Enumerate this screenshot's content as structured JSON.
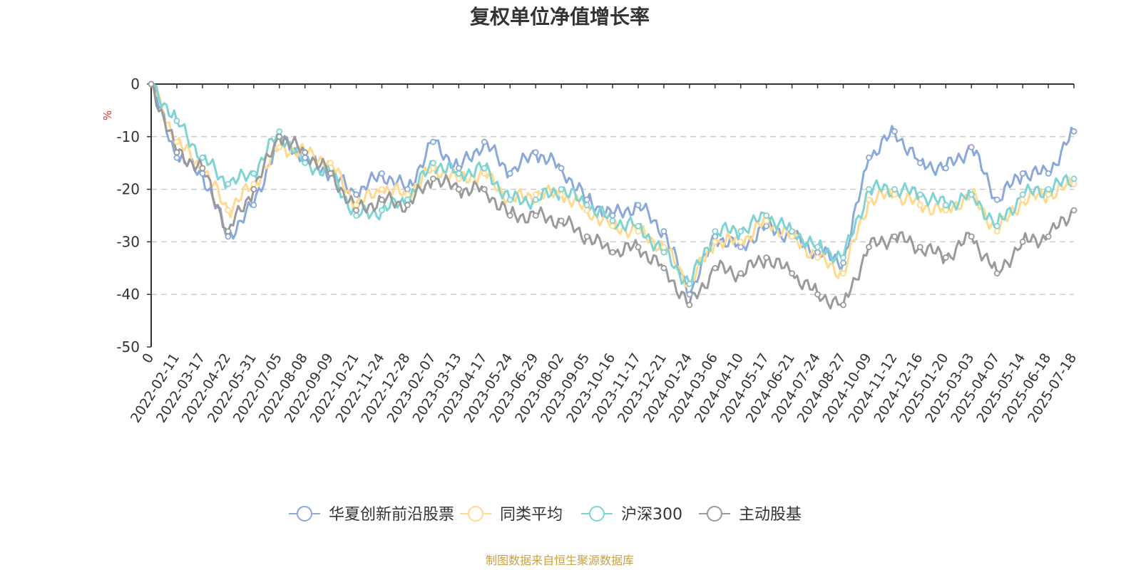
{
  "chart_data": {
    "type": "line",
    "title": "复权单位净值增长率",
    "ylabel": "%",
    "ylim": [
      -50,
      0
    ],
    "yticks": [
      0,
      -10,
      -20,
      -30,
      -40,
      -50
    ],
    "grid": "horizontal-dashed",
    "legend_position": "bottom",
    "source": "制图数据来自恒生聚源数据库",
    "x_tick_labels": [
      "0",
      "2022-02-11",
      "2022-03-17",
      "2022-04-22",
      "2022-05-31",
      "2022-07-05",
      "2022-08-08",
      "2022-09-09",
      "2022-10-21",
      "2022-11-24",
      "2022-12-28",
      "2023-02-07",
      "2023-03-13",
      "2023-04-17",
      "2023-05-24",
      "2023-06-29",
      "2023-08-02",
      "2023-09-05",
      "2023-10-16",
      "2023-11-17",
      "2023-12-21",
      "2024-01-24",
      "2024-03-06",
      "2024-04-10",
      "2024-05-17",
      "2024-06-21",
      "2024-07-24",
      "2024-08-27",
      "2024-10-09",
      "2024-11-12",
      "2024-12-16",
      "2025-01-20",
      "2025-03-03",
      "2025-04-07",
      "2025-05-14",
      "2025-06-18",
      "2025-07-18"
    ],
    "x": [
      "0",
      "2022-02-11",
      "2022-03-17",
      "2022-04-22",
      "2022-05-31",
      "2022-07-05",
      "2022-08-08",
      "2022-09-09",
      "2022-10-21",
      "2022-11-24",
      "2022-12-28",
      "2023-02-07",
      "2023-03-13",
      "2023-04-17",
      "2023-05-24",
      "2023-06-29",
      "2023-08-02",
      "2023-09-05",
      "2023-10-16",
      "2023-11-17",
      "2023-12-21",
      "2024-01-24",
      "2024-03-06",
      "2024-04-10",
      "2024-05-17",
      "2024-06-21",
      "2024-07-24",
      "2024-08-27",
      "2024-10-09",
      "2024-11-12",
      "2024-12-16",
      "2025-01-20",
      "2025-03-03",
      "2025-04-07",
      "2025-05-14",
      "2025-06-18",
      "2025-07-18"
    ],
    "series": [
      {
        "name": "华夏创新前沿股票",
        "color": "#8aa8d8",
        "values": [
          0,
          -14,
          -17,
          -29,
          -23,
          -10,
          -14,
          -17,
          -21,
          -17,
          -20,
          -11,
          -16,
          -11,
          -17,
          -13,
          -16,
          -22,
          -25,
          -23,
          -28,
          -40,
          -29,
          -31,
          -27,
          -29,
          -32,
          -34,
          -14,
          -9,
          -15,
          -16,
          -12,
          -22,
          -17,
          -17,
          -9
        ]
      },
      {
        "name": "同类平均",
        "color": "#ffd98e",
        "values": [
          0,
          -11,
          -16,
          -24,
          -19,
          -12,
          -13,
          -15,
          -23,
          -20,
          -21,
          -16,
          -18,
          -17,
          -22,
          -21,
          -21,
          -24,
          -27,
          -28,
          -31,
          -38,
          -30,
          -30,
          -26,
          -29,
          -33,
          -36,
          -22,
          -21,
          -23,
          -24,
          -21,
          -28,
          -22,
          -21,
          -19
        ]
      },
      {
        "name": "沪深300",
        "color": "#7fd3d3",
        "values": [
          0,
          -7,
          -14,
          -19,
          -17,
          -9,
          -15,
          -17,
          -25,
          -24,
          -22,
          -15,
          -17,
          -16,
          -22,
          -22,
          -20,
          -23,
          -26,
          -27,
          -32,
          -38,
          -28,
          -28,
          -25,
          -28,
          -31,
          -33,
          -20,
          -20,
          -21,
          -23,
          -21,
          -27,
          -21,
          -20,
          -18
        ]
      },
      {
        "name": "主动股基",
        "color": "#9a9a9a",
        "values": [
          0,
          -13,
          -16,
          -28,
          -20,
          -10,
          -13,
          -17,
          -24,
          -22,
          -23,
          -18,
          -20,
          -20,
          -25,
          -25,
          -26,
          -29,
          -32,
          -31,
          -35,
          -42,
          -35,
          -36,
          -33,
          -36,
          -40,
          -42,
          -31,
          -29,
          -31,
          -33,
          -29,
          -36,
          -30,
          -29,
          -24
        ]
      }
    ]
  }
}
